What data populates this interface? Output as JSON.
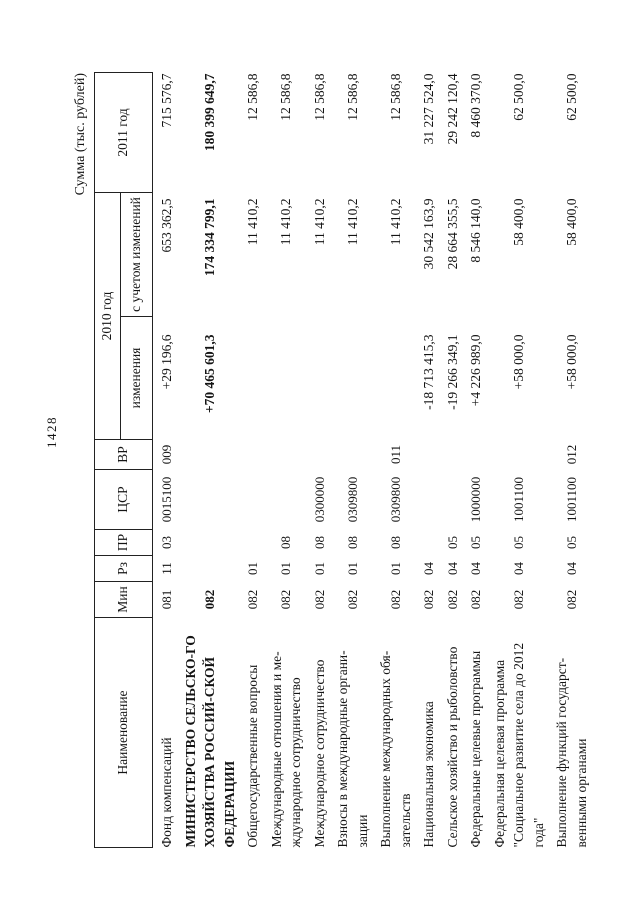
{
  "page": {
    "number": "1428",
    "sum_caption": "Сумма (тыс. рублей)"
  },
  "table": {
    "headers": {
      "name": "Наименование",
      "min": "Мин",
      "rz": "Рз",
      "pr": "ПР",
      "csr": "ЦСР",
      "vr": "ВР",
      "y2010": "2010 год",
      "changes": "изменения",
      "adjusted": "с учетом изменений",
      "y2011": "2011 год"
    },
    "rows": [
      {
        "name": "Фонд компенсаций",
        "min": "081",
        "rz": "11",
        "pr": "03",
        "csr": "0015100",
        "vr": "009",
        "change_2010": "+29 196,6",
        "adjusted_2010": "653 362,5",
        "year_2011": "715 576,7",
        "bold": false
      },
      {
        "name": "МИНИСТЕРСТВО СЕЛЬСКО-ГО ХОЗЯЙСТВА РОССИЙ-СКОЙ ФЕДЕРАЦИИ",
        "min": "082",
        "change_2010": "+70 465 601,3",
        "adjusted_2010": "174 334 799,1",
        "year_2011": "180 399 649,7",
        "bold": true
      },
      {
        "name": "Общегосударственные вопросы",
        "min": "082",
        "rz": "01",
        "adjusted_2010": "11 410,2",
        "year_2011": "12 586,8",
        "bold": false
      },
      {
        "name": "Международные отношения и ме-ждународное сотрудничество",
        "min": "082",
        "rz": "01",
        "pr": "08",
        "adjusted_2010": "11 410,2",
        "year_2011": "12 586,8",
        "bold": false
      },
      {
        "name": "Международное сотрудничество",
        "min": "082",
        "rz": "01",
        "pr": "08",
        "csr": "0300000",
        "adjusted_2010": "11 410,2",
        "year_2011": "12 586,8",
        "bold": false
      },
      {
        "name": "Взносы в международные органи-зации",
        "min": "082",
        "rz": "01",
        "pr": "08",
        "csr": "0309800",
        "adjusted_2010": "11 410,2",
        "year_2011": "12 586,8",
        "bold": false
      },
      {
        "name": "Выполнение международных обя-зательств",
        "min": "082",
        "rz": "01",
        "pr": "08",
        "csr": "0309800",
        "vr": "011",
        "adjusted_2010": "11 410,2",
        "year_2011": "12 586,8",
        "bold": false
      },
      {
        "name": "Национальная экономика",
        "min": "082",
        "rz": "04",
        "change_2010": "-18 713 415,3",
        "adjusted_2010": "30 542 163,9",
        "year_2011": "31 227 524,0",
        "bold": false
      },
      {
        "name": "Сельское хозяйство и рыболовство",
        "min": "082",
        "rz": "04",
        "pr": "05",
        "change_2010": "-19 266 349,1",
        "adjusted_2010": "28 664 355,5",
        "year_2011": "29 242 120,4",
        "bold": false
      },
      {
        "name": "Федеральные целевые программы",
        "min": "082",
        "rz": "04",
        "pr": "05",
        "csr": "1000000",
        "change_2010": "+4 226 989,0",
        "adjusted_2010": "8 546 140,0",
        "year_2011": "8 460 370,0",
        "bold": false
      },
      {
        "name": "Федеральная целевая программа \"Социальное развитие села до 2012 года\"",
        "min": "082",
        "rz": "04",
        "pr": "05",
        "csr": "1001100",
        "change_2010": "+58 000,0",
        "adjusted_2010": "58 400,0",
        "year_2011": "62 500,0",
        "bold": false
      },
      {
        "name": "Выполнение функций государст-венными органами",
        "min": "082",
        "rz": "04",
        "pr": "05",
        "csr": "1001100",
        "vr": "012",
        "change_2010": "+58 000,0",
        "adjusted_2010": "58 400,0",
        "year_2011": "62 500,0",
        "bold": false
      }
    ]
  }
}
